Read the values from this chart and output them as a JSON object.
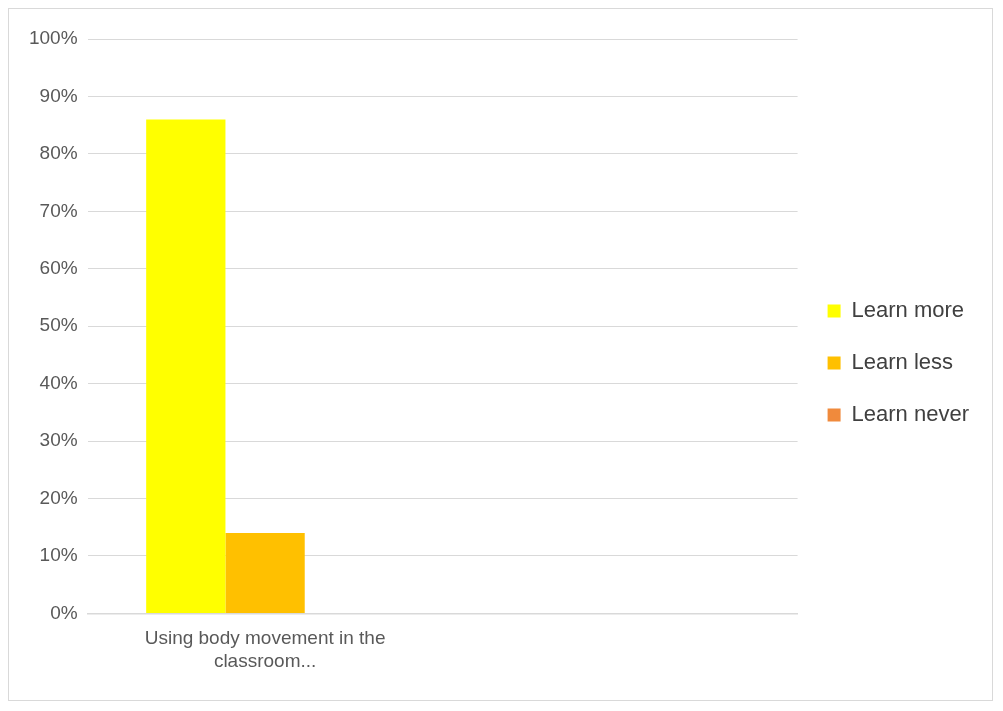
{
  "chart_data": {
    "type": "bar",
    "categories": [
      "Using body movement in the classroom...",
      null
    ],
    "series": [
      {
        "name": "Learn more",
        "color": "#ffff00",
        "values": [
          86,
          null
        ]
      },
      {
        "name": "Learn less",
        "color": "#ffc000",
        "values": [
          14,
          null
        ]
      },
      {
        "name": "Learn never",
        "color": "#f08a3c",
        "values": [
          0,
          null
        ]
      }
    ],
    "ylim": [
      0,
      100
    ],
    "yticks": [
      {
        "value": 0,
        "label": "0%"
      },
      {
        "value": 10,
        "label": "10%"
      },
      {
        "value": 20,
        "label": "20%"
      },
      {
        "value": 30,
        "label": "30%"
      },
      {
        "value": 40,
        "label": "40%"
      },
      {
        "value": 50,
        "label": "50%"
      },
      {
        "value": 60,
        "label": "60%"
      },
      {
        "value": 70,
        "label": "70%"
      },
      {
        "value": 80,
        "label": "80%"
      },
      {
        "value": 90,
        "label": "90%"
      },
      {
        "value": 100,
        "label": "100%"
      }
    ],
    "grid": "y",
    "legend": "right"
  }
}
